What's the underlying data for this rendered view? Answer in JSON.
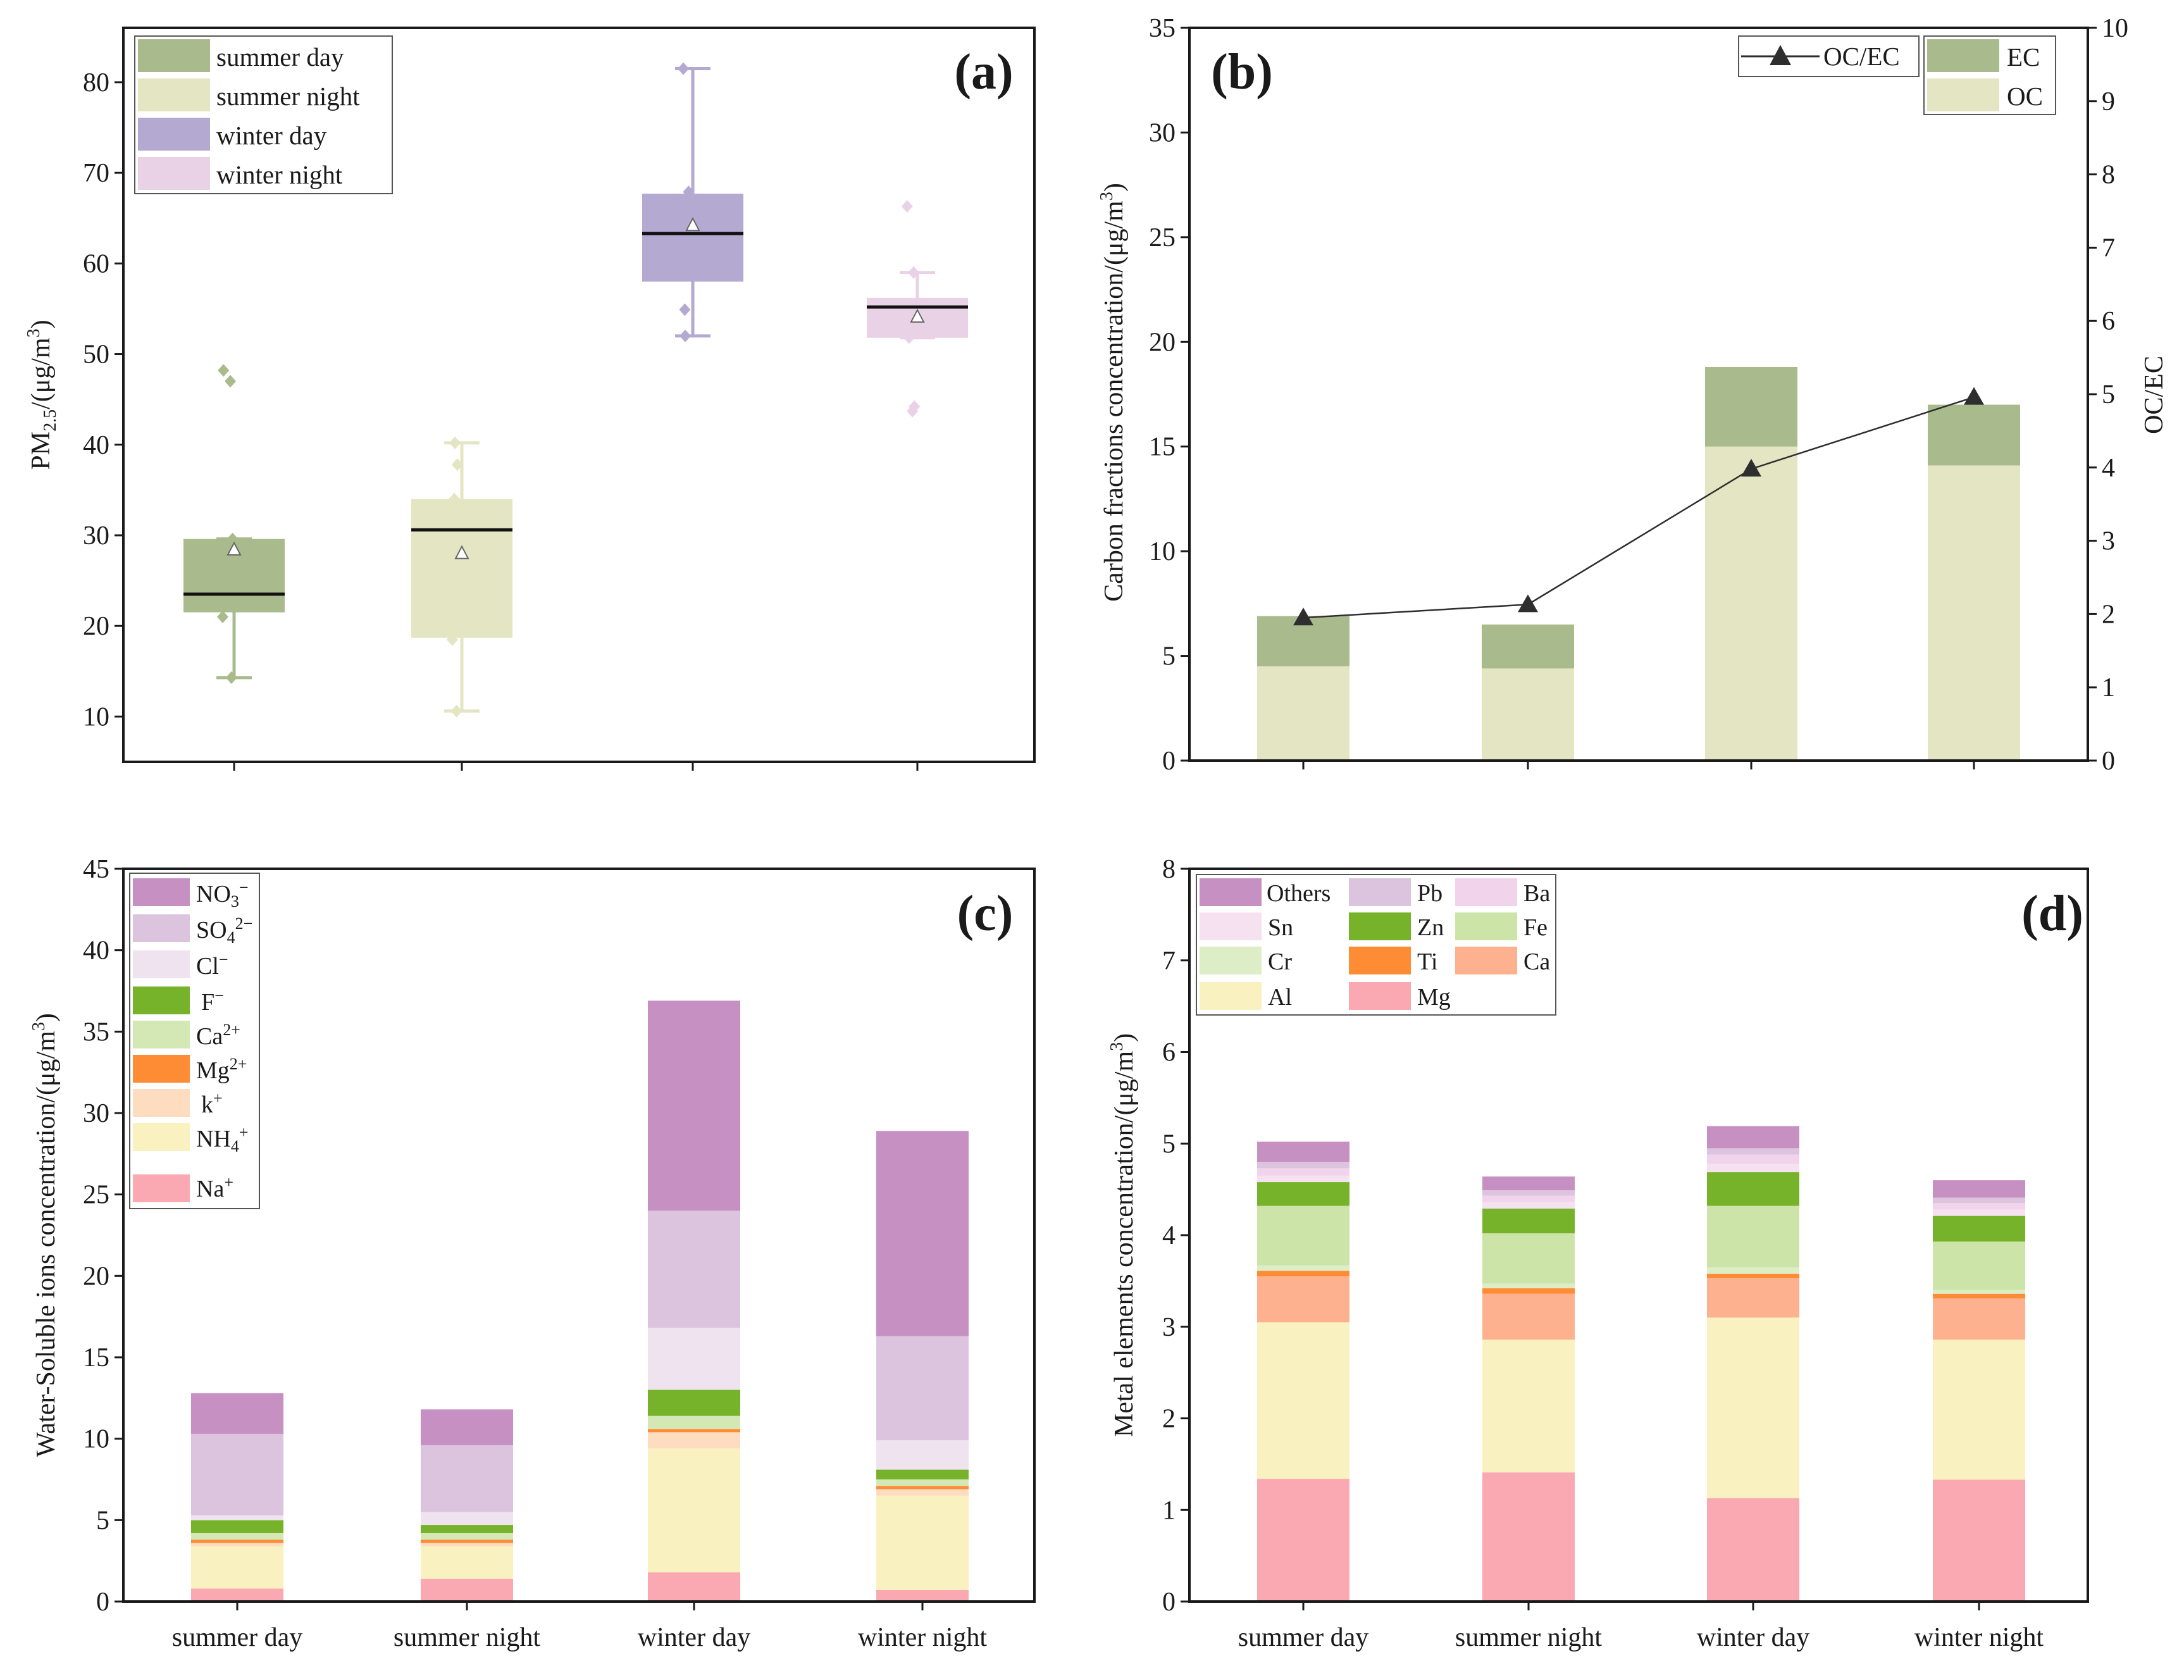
{
  "colors": {
    "summer_day": "#a9bb8c",
    "summer_night": "#e4e5c2",
    "winter_day": "#b4aad1",
    "winter_night": "#ead2e6",
    "EC": "#a9bb8c",
    "OC": "#e4e5c2",
    "line": "#2e2e2e",
    "NO3": "#c690c3",
    "SO4": "#dcc4df",
    "Cl": "#efe3ef",
    "F": "#77b32a",
    "Ca2": "#d4e8b6",
    "Mg2": "#fd8c35",
    "k": "#fddcc0",
    "NH4": "#f9f1c0",
    "Na": "#faa9b2",
    "Others": "#c690c3",
    "Pb": "#dcc4df",
    "Ba": "#f1d4ec",
    "Sn": "#f6e1f0",
    "Zn": "#77b32a",
    "Fe": "#cde4a8",
    "Cr": "#ddedc6",
    "Ti": "#fd8c35",
    "Ca": "#fdb18e",
    "Al": "#f9f1c0",
    "Mg": "#faa9b2"
  },
  "chart_data": [
    {
      "id": "a",
      "panel_label": "(a)",
      "type": "box",
      "ylabel": "PM2.5/(μg/m3)",
      "ylim": [
        5,
        86
      ],
      "yticks": [
        10,
        20,
        30,
        40,
        50,
        60,
        70,
        80
      ],
      "categories": [
        "summer day",
        "summer night",
        "winter day",
        "winter night"
      ],
      "legend": [
        "summer day",
        "summer night",
        "winter day",
        "winter night"
      ],
      "boxes": [
        {
          "name": "summer day",
          "q1": 21.5,
          "median": 23.5,
          "q3": 29.6,
          "whisker_low": 14.3,
          "whisker_high": 29.6,
          "mean": 28.4,
          "outliers": [
            47.0,
            48.2
          ],
          "points": [
            14.3,
            21.0,
            29.6,
            47.0,
            48.2
          ]
        },
        {
          "name": "summer night",
          "q1": 18.7,
          "median": 30.6,
          "q3": 34.0,
          "whisker_low": 10.6,
          "whisker_high": 40.2,
          "mean": 28.0,
          "outliers": [],
          "points": [
            10.6,
            18.5,
            34.0,
            37.8,
            40.2
          ]
        },
        {
          "name": "winter day",
          "q1": 58.0,
          "median": 63.3,
          "q3": 67.7,
          "whisker_low": 52.0,
          "whisker_high": 81.5,
          "mean": 64.2,
          "outliers": [],
          "points": [
            52.0,
            54.9,
            67.9,
            81.5
          ]
        },
        {
          "name": "winter night",
          "q1": 51.8,
          "median": 55.2,
          "q3": 56.2,
          "whisker_low": 51.8,
          "whisker_high": 59.0,
          "mean": 54.1,
          "outliers": [
            43.7,
            44.2,
            66.3
          ],
          "points": [
            43.7,
            44.2,
            51.8,
            59.0,
            66.3
          ]
        }
      ]
    },
    {
      "id": "b",
      "panel_label": "(b)",
      "type": "stacked-bar-line",
      "ylabel": "Carbon fractions concentration/(μg/m3)",
      "y2label": "OC/EC",
      "ylim": [
        0,
        35
      ],
      "y2lim": [
        0,
        10
      ],
      "yticks": [
        0,
        5,
        10,
        15,
        20,
        25,
        30,
        35
      ],
      "y2ticks": [
        0,
        1,
        2,
        3,
        4,
        5,
        6,
        7,
        8,
        9,
        10
      ],
      "categories": [
        "summer day",
        "summer night",
        "winter day",
        "winter night"
      ],
      "series": [
        {
          "name": "OC",
          "values": [
            4.5,
            4.4,
            15.0,
            14.1
          ]
        },
        {
          "name": "EC",
          "values": [
            2.4,
            2.1,
            3.8,
            2.9
          ]
        }
      ],
      "line": {
        "name": "OC/EC",
        "values": [
          1.95,
          2.13,
          3.98,
          4.96
        ]
      },
      "legend": [
        "OC/EC",
        "EC",
        "OC"
      ]
    },
    {
      "id": "c",
      "panel_label": "(c)",
      "type": "stacked-bar",
      "ylabel": "Water-Soluble ions concentration/(μg/m3)",
      "ylim": [
        0,
        45
      ],
      "yticks": [
        0,
        5,
        10,
        15,
        20,
        25,
        30,
        35,
        40,
        45
      ],
      "categories": [
        "summer day",
        "summer night",
        "winter day",
        "winter night"
      ],
      "series": [
        {
          "name": "Na+",
          "values": [
            0.8,
            1.4,
            1.8,
            0.7
          ]
        },
        {
          "name": "NH4+",
          "values": [
            2.6,
            2.0,
            7.6,
            5.8
          ]
        },
        {
          "name": "k+",
          "values": [
            0.2,
            0.2,
            1.0,
            0.4
          ]
        },
        {
          "name": "Mg2+",
          "values": [
            0.2,
            0.2,
            0.2,
            0.2
          ]
        },
        {
          "name": "Ca2+",
          "values": [
            0.4,
            0.4,
            0.8,
            0.4
          ]
        },
        {
          "name": "F-",
          "values": [
            0.8,
            0.5,
            1.6,
            0.6
          ]
        },
        {
          "name": "Cl-",
          "values": [
            0.3,
            0.8,
            3.8,
            1.8
          ]
        },
        {
          "name": "SO42-",
          "values": [
            5.0,
            4.1,
            7.2,
            6.4
          ]
        },
        {
          "name": "NO3-",
          "values": [
            2.5,
            2.2,
            12.9,
            12.6
          ]
        }
      ],
      "legend": [
        "NO3−",
        "SO42−",
        "Cl−",
        "F−",
        "Ca2+",
        "Mg2+",
        "k+",
        "NH4+",
        "Na+"
      ]
    },
    {
      "id": "d",
      "panel_label": "(d)",
      "type": "stacked-bar",
      "ylabel": "Metal elements concentration/(μg/m3)",
      "ylim": [
        0,
        8
      ],
      "yticks": [
        0,
        1,
        2,
        3,
        4,
        5,
        6,
        7,
        8
      ],
      "categories": [
        "summer day",
        "summer night",
        "winter day",
        "winter night"
      ],
      "series": [
        {
          "name": "Mg",
          "values": [
            1.34,
            1.41,
            1.13,
            1.33
          ]
        },
        {
          "name": "Al",
          "values": [
            1.71,
            1.45,
            1.97,
            1.53
          ]
        },
        {
          "name": "Ca",
          "values": [
            0.5,
            0.5,
            0.43,
            0.45
          ]
        },
        {
          "name": "Ti",
          "values": [
            0.06,
            0.06,
            0.05,
            0.05
          ]
        },
        {
          "name": "Cr",
          "values": [
            0.06,
            0.05,
            0.07,
            0.04
          ]
        },
        {
          "name": "Fe",
          "values": [
            0.65,
            0.55,
            0.67,
            0.53
          ]
        },
        {
          "name": "Zn",
          "values": [
            0.26,
            0.27,
            0.37,
            0.28
          ]
        },
        {
          "name": "Sn",
          "values": [
            0.07,
            0.07,
            0.09,
            0.07
          ]
        },
        {
          "name": "Ba",
          "values": [
            0.08,
            0.07,
            0.1,
            0.07
          ]
        },
        {
          "name": "Pb",
          "values": [
            0.07,
            0.06,
            0.07,
            0.06
          ]
        },
        {
          "name": "Others",
          "values": [
            0.22,
            0.15,
            0.24,
            0.19
          ]
        }
      ],
      "legend": [
        "Others",
        "Pb",
        "Ba",
        "Sn",
        "Zn",
        "Fe",
        "Cr",
        "Ti",
        "Ca",
        "Al",
        "Mg"
      ]
    }
  ]
}
